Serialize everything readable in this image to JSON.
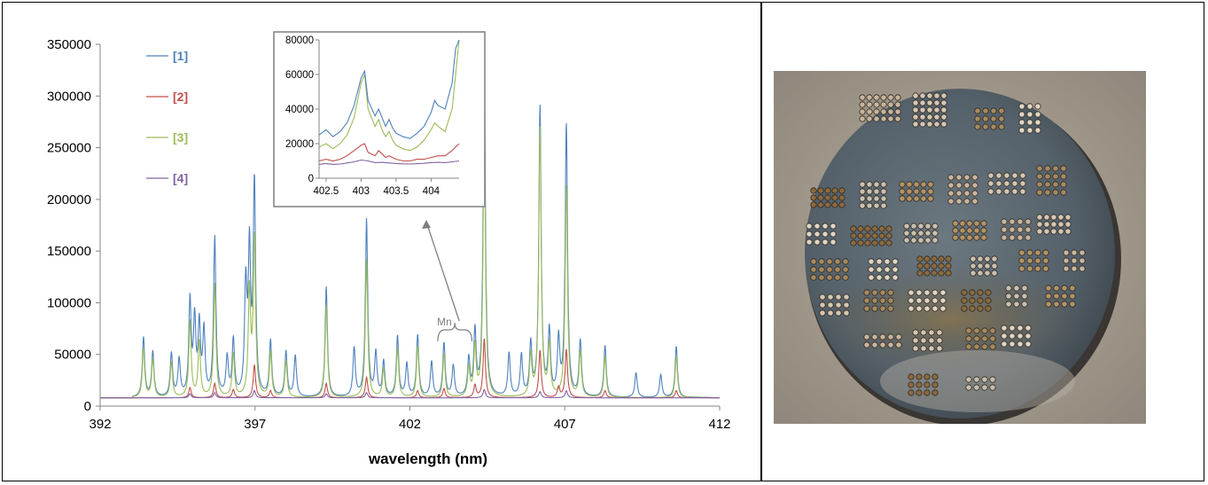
{
  "chart_data": [
    {
      "type": "line",
      "title": "",
      "xlabel": "wavelength (nm)",
      "ylabel": "",
      "xlim": [
        392,
        412
      ],
      "ylim": [
        0,
        350000
      ],
      "x_ticks": [
        392,
        397,
        402,
        407,
        412
      ],
      "y_ticks": [
        0,
        50000,
        100000,
        150000,
        200000,
        250000,
        300000,
        350000
      ],
      "x_tick_labels": [
        "392",
        "397",
        "402",
        "407",
        "412"
      ],
      "y_tick_labels": [
        "0",
        "50000",
        "100000",
        "150000",
        "200000",
        "250000",
        "300000",
        "350000"
      ],
      "legend": "top-left",
      "grid": false,
      "baseline_min": 8000,
      "series": [
        {
          "name": "[1]",
          "color": "#4f81bd",
          "baseline": 8000,
          "peaks": [
            [
              393.4,
              66000
            ],
            [
              393.7,
              52000
            ],
            [
              394.3,
              50000
            ],
            [
              394.55,
              44000
            ],
            [
              394.9,
              100000
            ],
            [
              395.05,
              80000
            ],
            [
              395.2,
              75000
            ],
            [
              395.35,
              70000
            ],
            [
              395.7,
              162000
            ],
            [
              396.1,
              45000
            ],
            [
              396.3,
              62000
            ],
            [
              396.7,
              112000
            ],
            [
              396.82,
              145000
            ],
            [
              396.98,
              213000
            ],
            [
              397.5,
              62000
            ],
            [
              398.0,
              52000
            ],
            [
              398.3,
              48000
            ],
            [
              399.3,
              115000
            ],
            [
              400.2,
              55000
            ],
            [
              400.6,
              180000
            ],
            [
              400.9,
              50000
            ],
            [
              401.15,
              42000
            ],
            [
              401.6,
              67000
            ],
            [
              401.9,
              40000
            ],
            [
              402.25,
              68000
            ],
            [
              402.7,
              42000
            ],
            [
              403.1,
              60000
            ],
            [
              403.4,
              38000
            ],
            [
              403.9,
              44000
            ],
            [
              404.1,
              70000
            ],
            [
              404.4,
              325000
            ],
            [
              405.2,
              50000
            ],
            [
              405.6,
              48000
            ],
            [
              405.9,
              58000
            ],
            [
              406.2,
              288000
            ],
            [
              406.5,
              70000
            ],
            [
              406.8,
              62000
            ],
            [
              407.05,
              272000
            ],
            [
              407.5,
              62000
            ],
            [
              408.3,
              58000
            ],
            [
              409.3,
              32000
            ],
            [
              410.1,
              30000
            ],
            [
              410.6,
              58000
            ]
          ]
        },
        {
          "name": "[2]",
          "color": "#c0504d",
          "baseline": 8000,
          "peaks": [
            [
              394.9,
              18000
            ],
            [
              395.7,
              22000
            ],
            [
              396.3,
              16000
            ],
            [
              396.98,
              40000
            ],
            [
              397.5,
              15000
            ],
            [
              399.3,
              22000
            ],
            [
              400.6,
              28000
            ],
            [
              402.25,
              15000
            ],
            [
              403.1,
              17000
            ],
            [
              404.1,
              20000
            ],
            [
              404.4,
              65000
            ],
            [
              406.2,
              54000
            ],
            [
              406.8,
              18000
            ],
            [
              407.05,
              55000
            ],
            [
              408.3,
              15000
            ],
            [
              410.6,
              15000
            ]
          ]
        },
        {
          "name": "[3]",
          "color": "#9bbb59",
          "baseline": 8000,
          "peaks": [
            [
              393.4,
              55000
            ],
            [
              393.7,
              45000
            ],
            [
              394.3,
              42000
            ],
            [
              394.9,
              82000
            ],
            [
              395.2,
              62000
            ],
            [
              395.7,
              118000
            ],
            [
              396.3,
              50000
            ],
            [
              396.82,
              110000
            ],
            [
              396.98,
              162000
            ],
            [
              397.5,
              52000
            ],
            [
              398.0,
              44000
            ],
            [
              399.3,
              98000
            ],
            [
              400.6,
              142000
            ],
            [
              401.15,
              36000
            ],
            [
              401.6,
              56000
            ],
            [
              402.25,
              58000
            ],
            [
              403.1,
              50000
            ],
            [
              403.9,
              36000
            ],
            [
              404.1,
              56000
            ],
            [
              404.4,
              270000
            ],
            [
              405.9,
              48000
            ],
            [
              406.2,
              268000
            ],
            [
              406.5,
              58000
            ],
            [
              407.05,
              213000
            ],
            [
              407.5,
              52000
            ],
            [
              408.3,
              48000
            ],
            [
              410.6,
              48000
            ]
          ]
        },
        {
          "name": "[4]",
          "color": "#8064a2",
          "baseline": 8000,
          "peaks": [
            [
              394.9,
              12000
            ],
            [
              395.7,
              13000
            ],
            [
              396.98,
              15000
            ],
            [
              399.3,
              12000
            ],
            [
              400.6,
              13000
            ],
            [
              404.4,
              16000
            ],
            [
              406.2,
              14000
            ],
            [
              407.05,
              15000
            ]
          ]
        }
      ],
      "annotations": [
        {
          "text": "Mn",
          "x_from": 402.9,
          "x_to": 404.0
        }
      ]
    },
    {
      "type": "line",
      "title": "",
      "xlabel": "",
      "ylabel": "",
      "xlim": [
        402.4,
        404.4
      ],
      "ylim": [
        0,
        80000
      ],
      "x_ticks": [
        402.5,
        403,
        403.5,
        404
      ],
      "y_ticks": [
        0,
        20000,
        40000,
        60000,
        80000
      ],
      "x_tick_labels": [
        "402.5",
        "403",
        "403.5",
        "404"
      ],
      "y_tick_labels": [
        "0",
        "20000",
        "40000",
        "60000",
        "80000"
      ],
      "series": [
        {
          "name": "[1]",
          "color": "#4f81bd",
          "x": [
            402.4,
            402.5,
            402.6,
            402.7,
            402.8,
            402.9,
            403.0,
            403.05,
            403.1,
            403.2,
            403.25,
            403.3,
            403.35,
            403.4,
            403.45,
            403.5,
            403.6,
            403.7,
            403.8,
            403.9,
            404.0,
            404.05,
            404.1,
            404.2,
            404.3,
            404.35,
            404.4
          ],
          "y": [
            25000,
            28000,
            24000,
            27000,
            32000,
            42000,
            58000,
            62000,
            45000,
            36000,
            40000,
            35000,
            30000,
            34000,
            29000,
            26000,
            24000,
            23000,
            26000,
            30000,
            38000,
            45000,
            42000,
            40000,
            55000,
            75000,
            80000
          ]
        },
        {
          "name": "[2]",
          "color": "#c0504d",
          "x": [
            402.4,
            402.5,
            402.6,
            402.7,
            402.8,
            402.9,
            403.0,
            403.05,
            403.1,
            403.2,
            403.25,
            403.3,
            403.35,
            403.4,
            403.5,
            403.6,
            403.7,
            403.8,
            403.9,
            404.0,
            404.1,
            404.2,
            404.3,
            404.4
          ],
          "y": [
            10000,
            11000,
            10000,
            11000,
            13000,
            16000,
            19000,
            20000,
            15000,
            13000,
            16000,
            14000,
            12000,
            13000,
            11000,
            10000,
            10000,
            11000,
            11000,
            12000,
            13000,
            13000,
            16000,
            20000
          ]
        },
        {
          "name": "[3]",
          "color": "#9bbb59",
          "x": [
            402.4,
            402.5,
            402.6,
            402.7,
            402.8,
            402.9,
            403.0,
            403.05,
            403.1,
            403.2,
            403.25,
            403.3,
            403.35,
            403.4,
            403.45,
            403.5,
            403.6,
            403.7,
            403.8,
            403.9,
            404.0,
            404.05,
            404.1,
            404.2,
            404.3,
            404.35,
            404.4
          ],
          "y": [
            18000,
            20000,
            17000,
            20000,
            25000,
            35000,
            55000,
            60000,
            40000,
            30000,
            34000,
            28000,
            24000,
            27000,
            22000,
            19000,
            17000,
            16000,
            18000,
            22000,
            28000,
            32000,
            30000,
            27000,
            40000,
            60000,
            80000
          ]
        },
        {
          "name": "[4]",
          "color": "#8064a2",
          "x": [
            402.4,
            402.5,
            402.6,
            402.7,
            402.8,
            402.9,
            403.0,
            403.1,
            403.2,
            403.3,
            403.4,
            403.5,
            403.6,
            403.7,
            403.8,
            403.9,
            404.0,
            404.1,
            404.2,
            404.3,
            404.4
          ],
          "y": [
            8000,
            8500,
            8000,
            8200,
            8800,
            9500,
            10500,
            10000,
            9000,
            9200,
            8800,
            8500,
            8300,
            8200,
            8400,
            8600,
            9000,
            9200,
            9000,
            9500,
            10000
          ]
        }
      ]
    }
  ],
  "photo": {
    "icon": "sample-disc-photo",
    "background_color": "#a59b8f",
    "disc_color": "#5c6870"
  }
}
